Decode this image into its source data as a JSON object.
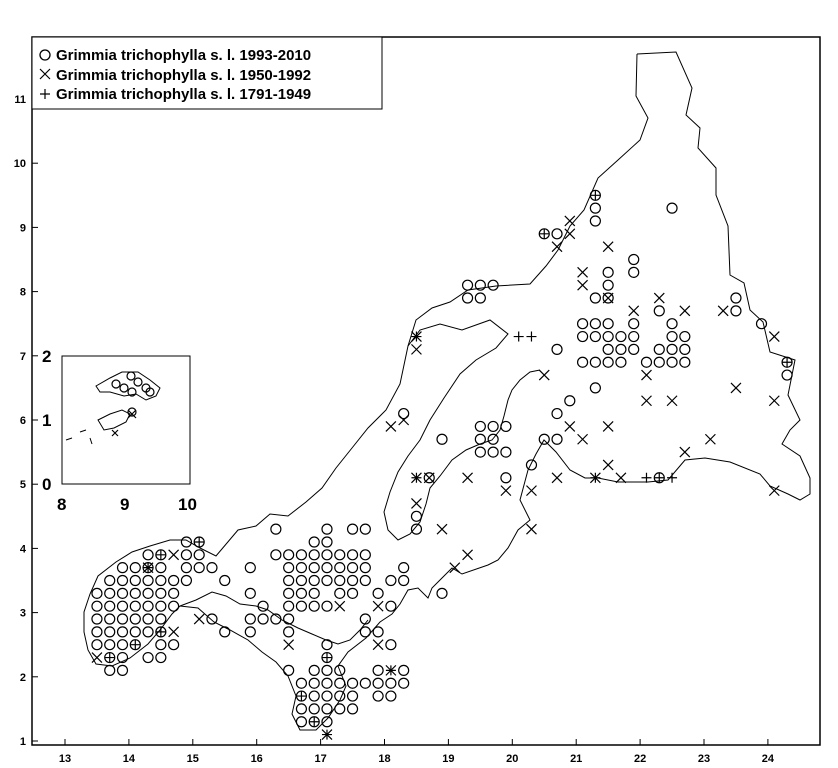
{
  "map": {
    "x_ticks": [
      "13",
      "14",
      "15",
      "16",
      "17",
      "18",
      "19",
      "20",
      "21",
      "22",
      "23",
      "24"
    ],
    "y_ticks": [
      "1",
      "2",
      "3",
      "4",
      "5",
      "6",
      "7",
      "8",
      "9",
      "10",
      "11"
    ],
    "xlim": [
      12.6,
      24.9
    ],
    "ylim": [
      0.9,
      12.2
    ]
  },
  "legend": {
    "entries": [
      {
        "symbol": "circle",
        "label": "Grimmia trichophylla s. l. 1993-2010"
      },
      {
        "symbol": "x",
        "label": "Grimmia trichophylla s. l. 1950-1992"
      },
      {
        "symbol": "plus",
        "label": "Grimmia trichophylla s. l. 1791-1949"
      }
    ]
  },
  "inset": {
    "x_ticks": [
      "8",
      "9",
      "10"
    ],
    "y_ticks": [
      "0",
      "1",
      "2"
    ]
  },
  "chart_data": {
    "type": "scatter",
    "title": "",
    "xlabel": "",
    "ylabel": "",
    "xlim": [
      12.6,
      24.9
    ],
    "ylim": [
      0.9,
      12.2
    ],
    "series": [
      {
        "name": "Grimmia trichophylla s. l. 1993-2010",
        "symbol": "circle",
        "points": [
          [
            13.5,
            3.3
          ],
          [
            13.5,
            3.1
          ],
          [
            13.5,
            2.9
          ],
          [
            13.5,
            2.7
          ],
          [
            13.5,
            2.5
          ],
          [
            13.7,
            3.5
          ],
          [
            13.7,
            3.3
          ],
          [
            13.7,
            3.1
          ],
          [
            13.7,
            2.9
          ],
          [
            13.7,
            2.7
          ],
          [
            13.7,
            2.5
          ],
          [
            13.7,
            2.3
          ],
          [
            13.7,
            2.1
          ],
          [
            13.9,
            3.7
          ],
          [
            13.9,
            3.5
          ],
          [
            13.9,
            3.3
          ],
          [
            13.9,
            3.1
          ],
          [
            13.9,
            2.9
          ],
          [
            13.9,
            2.7
          ],
          [
            13.9,
            2.5
          ],
          [
            13.9,
            2.3
          ],
          [
            13.9,
            2.1
          ],
          [
            14.1,
            3.7
          ],
          [
            14.1,
            3.5
          ],
          [
            14.1,
            3.3
          ],
          [
            14.1,
            3.1
          ],
          [
            14.1,
            2.9
          ],
          [
            14.1,
            2.7
          ],
          [
            14.1,
            2.5
          ],
          [
            14.3,
            3.9
          ],
          [
            14.3,
            3.7
          ],
          [
            14.3,
            3.5
          ],
          [
            14.3,
            3.3
          ],
          [
            14.3,
            3.1
          ],
          [
            14.3,
            2.9
          ],
          [
            14.3,
            2.7
          ],
          [
            14.3,
            2.3
          ],
          [
            14.5,
            3.9
          ],
          [
            14.5,
            3.7
          ],
          [
            14.5,
            3.5
          ],
          [
            14.5,
            3.3
          ],
          [
            14.5,
            3.1
          ],
          [
            14.5,
            2.9
          ],
          [
            14.5,
            2.7
          ],
          [
            14.5,
            2.5
          ],
          [
            14.5,
            2.3
          ],
          [
            14.7,
            3.5
          ],
          [
            14.7,
            3.3
          ],
          [
            14.7,
            3.1
          ],
          [
            14.7,
            2.5
          ],
          [
            14.9,
            4.1
          ],
          [
            14.9,
            3.9
          ],
          [
            14.9,
            3.7
          ],
          [
            14.9,
            3.5
          ],
          [
            15.1,
            4.1
          ],
          [
            15.1,
            3.9
          ],
          [
            15.1,
            3.7
          ],
          [
            15.3,
            3.7
          ],
          [
            15.3,
            2.9
          ],
          [
            15.5,
            3.5
          ],
          [
            15.5,
            2.7
          ],
          [
            15.9,
            3.7
          ],
          [
            15.9,
            3.3
          ],
          [
            15.9,
            2.9
          ],
          [
            15.9,
            2.7
          ],
          [
            16.1,
            3.1
          ],
          [
            16.1,
            2.9
          ],
          [
            16.3,
            4.3
          ],
          [
            16.3,
            3.9
          ],
          [
            16.3,
            2.9
          ],
          [
            16.5,
            3.9
          ],
          [
            16.5,
            3.7
          ],
          [
            16.5,
            3.5
          ],
          [
            16.5,
            3.3
          ],
          [
            16.5,
            3.1
          ],
          [
            16.5,
            2.9
          ],
          [
            16.5,
            2.7
          ],
          [
            16.5,
            2.1
          ],
          [
            16.7,
            3.9
          ],
          [
            16.7,
            3.7
          ],
          [
            16.7,
            3.5
          ],
          [
            16.7,
            3.3
          ],
          [
            16.7,
            3.1
          ],
          [
            16.7,
            1.9
          ],
          [
            16.7,
            1.7
          ],
          [
            16.7,
            1.5
          ],
          [
            16.7,
            1.3
          ],
          [
            16.9,
            4.1
          ],
          [
            16.9,
            3.9
          ],
          [
            16.9,
            3.7
          ],
          [
            16.9,
            3.5
          ],
          [
            16.9,
            3.3
          ],
          [
            16.9,
            3.1
          ],
          [
            16.9,
            2.1
          ],
          [
            16.9,
            1.9
          ],
          [
            16.9,
            1.7
          ],
          [
            16.9,
            1.5
          ],
          [
            16.9,
            1.3
          ],
          [
            17.1,
            4.3
          ],
          [
            17.1,
            4.1
          ],
          [
            17.1,
            3.9
          ],
          [
            17.1,
            3.7
          ],
          [
            17.1,
            3.5
          ],
          [
            17.1,
            3.1
          ],
          [
            17.1,
            2.5
          ],
          [
            17.1,
            2.3
          ],
          [
            17.1,
            2.1
          ],
          [
            17.1,
            1.9
          ],
          [
            17.1,
            1.7
          ],
          [
            17.1,
            1.5
          ],
          [
            17.1,
            1.3
          ],
          [
            17.3,
            3.9
          ],
          [
            17.3,
            3.7
          ],
          [
            17.3,
            3.5
          ],
          [
            17.3,
            3.3
          ],
          [
            17.3,
            2.1
          ],
          [
            17.3,
            1.9
          ],
          [
            17.3,
            1.7
          ],
          [
            17.3,
            1.5
          ],
          [
            17.5,
            4.3
          ],
          [
            17.5,
            3.9
          ],
          [
            17.5,
            3.7
          ],
          [
            17.5,
            3.5
          ],
          [
            17.5,
            3.3
          ],
          [
            17.5,
            1.9
          ],
          [
            17.5,
            1.7
          ],
          [
            17.5,
            1.5
          ],
          [
            17.7,
            4.3
          ],
          [
            17.7,
            3.9
          ],
          [
            17.7,
            3.7
          ],
          [
            17.7,
            3.5
          ],
          [
            17.7,
            2.9
          ],
          [
            17.7,
            2.7
          ],
          [
            17.7,
            1.9
          ],
          [
            17.9,
            3.3
          ],
          [
            17.9,
            2.7
          ],
          [
            17.9,
            2.1
          ],
          [
            17.9,
            1.9
          ],
          [
            17.9,
            1.7
          ],
          [
            18.1,
            3.5
          ],
          [
            18.1,
            3.1
          ],
          [
            18.1,
            2.5
          ],
          [
            18.1,
            1.9
          ],
          [
            18.1,
            1.7
          ],
          [
            18.3,
            3.7
          ],
          [
            18.3,
            3.5
          ],
          [
            18.3,
            2.1
          ],
          [
            18.3,
            1.9
          ],
          [
            18.5,
            4.5
          ],
          [
            18.5,
            4.3
          ],
          [
            18.7,
            5.1
          ],
          [
            18.9,
            3.3
          ],
          [
            18.3,
            6.1
          ],
          [
            18.9,
            5.7
          ],
          [
            19.3,
            8.1
          ],
          [
            19.3,
            7.9
          ],
          [
            19.5,
            8.1
          ],
          [
            19.5,
            7.9
          ],
          [
            19.7,
            8.1
          ],
          [
            19.5,
            5.9
          ],
          [
            19.5,
            5.7
          ],
          [
            19.5,
            5.5
          ],
          [
            19.7,
            5.9
          ],
          [
            19.7,
            5.7
          ],
          [
            19.7,
            5.5
          ],
          [
            19.9,
            5.9
          ],
          [
            19.9,
            5.5
          ],
          [
            19.9,
            5.1
          ],
          [
            20.3,
            5.3
          ],
          [
            20.5,
            5.7
          ],
          [
            20.5,
            8.9
          ],
          [
            20.7,
            8.9
          ],
          [
            20.7,
            7.1
          ],
          [
            20.7,
            6.1
          ],
          [
            20.7,
            5.7
          ],
          [
            20.9,
            6.3
          ],
          [
            21.1,
            7.5
          ],
          [
            21.1,
            7.3
          ],
          [
            21.1,
            6.9
          ],
          [
            21.3,
            7.9
          ],
          [
            21.3,
            7.5
          ],
          [
            21.3,
            7.3
          ],
          [
            21.3,
            6.9
          ],
          [
            21.3,
            6.5
          ],
          [
            21.3,
            9.5
          ],
          [
            21.3,
            9.3
          ],
          [
            21.3,
            9.1
          ],
          [
            21.5,
            8.3
          ],
          [
            21.5,
            8.1
          ],
          [
            21.5,
            7.9
          ],
          [
            21.5,
            7.5
          ],
          [
            21.5,
            7.3
          ],
          [
            21.5,
            7.1
          ],
          [
            21.5,
            6.9
          ],
          [
            21.7,
            7.3
          ],
          [
            21.7,
            7.1
          ],
          [
            21.7,
            6.9
          ],
          [
            21.9,
            8.5
          ],
          [
            21.9,
            8.3
          ],
          [
            21.9,
            7.5
          ],
          [
            21.9,
            7.3
          ],
          [
            21.9,
            7.1
          ],
          [
            22.1,
            6.9
          ],
          [
            22.3,
            7.7
          ],
          [
            22.3,
            7.1
          ],
          [
            22.3,
            6.9
          ],
          [
            22.3,
            5.1
          ],
          [
            22.5,
            9.3
          ],
          [
            22.5,
            7.5
          ],
          [
            22.5,
            7.3
          ],
          [
            22.5,
            7.1
          ],
          [
            22.5,
            6.9
          ],
          [
            22.7,
            7.3
          ],
          [
            22.7,
            7.1
          ],
          [
            22.7,
            6.9
          ],
          [
            23.5,
            7.9
          ],
          [
            23.5,
            7.7
          ],
          [
            23.9,
            7.5
          ],
          [
            24.3,
            6.9
          ],
          [
            24.3,
            6.7
          ]
        ]
      },
      {
        "name": "Grimmia trichophylla s. l. 1950-1992",
        "symbol": "x",
        "points": [
          [
            13.5,
            2.3
          ],
          [
            14.3,
            3.7
          ],
          [
            14.7,
            3.9
          ],
          [
            14.7,
            2.7
          ],
          [
            15.1,
            2.9
          ],
          [
            16.5,
            2.5
          ],
          [
            17.3,
            3.1
          ],
          [
            17.9,
            3.1
          ],
          [
            17.9,
            2.5
          ],
          [
            18.1,
            2.1
          ],
          [
            18.1,
            5.9
          ],
          [
            18.3,
            6.0
          ],
          [
            18.5,
            7.3
          ],
          [
            18.5,
            7.1
          ],
          [
            18.5,
            4.7
          ],
          [
            18.5,
            5.1
          ],
          [
            18.7,
            5.1
          ],
          [
            18.9,
            4.3
          ],
          [
            19.3,
            5.1
          ],
          [
            19.3,
            3.9
          ],
          [
            19.1,
            3.7
          ],
          [
            19.9,
            4.9
          ],
          [
            20.3,
            4.9
          ],
          [
            20.3,
            4.3
          ],
          [
            20.5,
            6.7
          ],
          [
            20.7,
            5.1
          ],
          [
            20.7,
            8.7
          ],
          [
            20.9,
            8.9
          ],
          [
            20.9,
            9.1
          ],
          [
            20.9,
            5.9
          ],
          [
            21.1,
            8.3
          ],
          [
            21.1,
            8.1
          ],
          [
            21.1,
            5.7
          ],
          [
            21.5,
            8.7
          ],
          [
            21.5,
            7.9
          ],
          [
            21.5,
            5.9
          ],
          [
            21.5,
            5.3
          ],
          [
            21.3,
            5.1
          ],
          [
            21.7,
            5.1
          ],
          [
            21.9,
            7.7
          ],
          [
            22.1,
            6.7
          ],
          [
            22.1,
            6.3
          ],
          [
            22.3,
            7.9
          ],
          [
            22.5,
            6.3
          ],
          [
            22.7,
            7.7
          ],
          [
            22.7,
            5.5
          ],
          [
            23.1,
            5.7
          ],
          [
            23.3,
            7.7
          ],
          [
            23.5,
            6.5
          ],
          [
            24.1,
            7.3
          ],
          [
            24.1,
            6.3
          ],
          [
            24.1,
            4.9
          ],
          [
            17.1,
            1.1
          ]
        ]
      },
      {
        "name": "Grimmia trichophylla s. l. 1791-1949",
        "symbol": "plus",
        "points": [
          [
            13.7,
            2.3
          ],
          [
            14.1,
            2.5
          ],
          [
            14.3,
            3.7
          ],
          [
            14.5,
            3.9
          ],
          [
            14.5,
            2.7
          ],
          [
            15.1,
            4.1
          ],
          [
            16.7,
            1.7
          ],
          [
            16.9,
            1.3
          ],
          [
            17.1,
            1.1
          ],
          [
            17.1,
            2.3
          ],
          [
            18.1,
            2.1
          ],
          [
            18.5,
            5.1
          ],
          [
            18.5,
            7.3
          ],
          [
            20.1,
            7.3
          ],
          [
            20.3,
            7.3
          ],
          [
            20.5,
            8.9
          ],
          [
            21.3,
            9.5
          ],
          [
            21.3,
            5.1
          ],
          [
            22.3,
            5.1
          ],
          [
            22.5,
            5.1
          ],
          [
            22.1,
            5.1
          ],
          [
            24.3,
            6.9
          ]
        ]
      }
    ]
  }
}
